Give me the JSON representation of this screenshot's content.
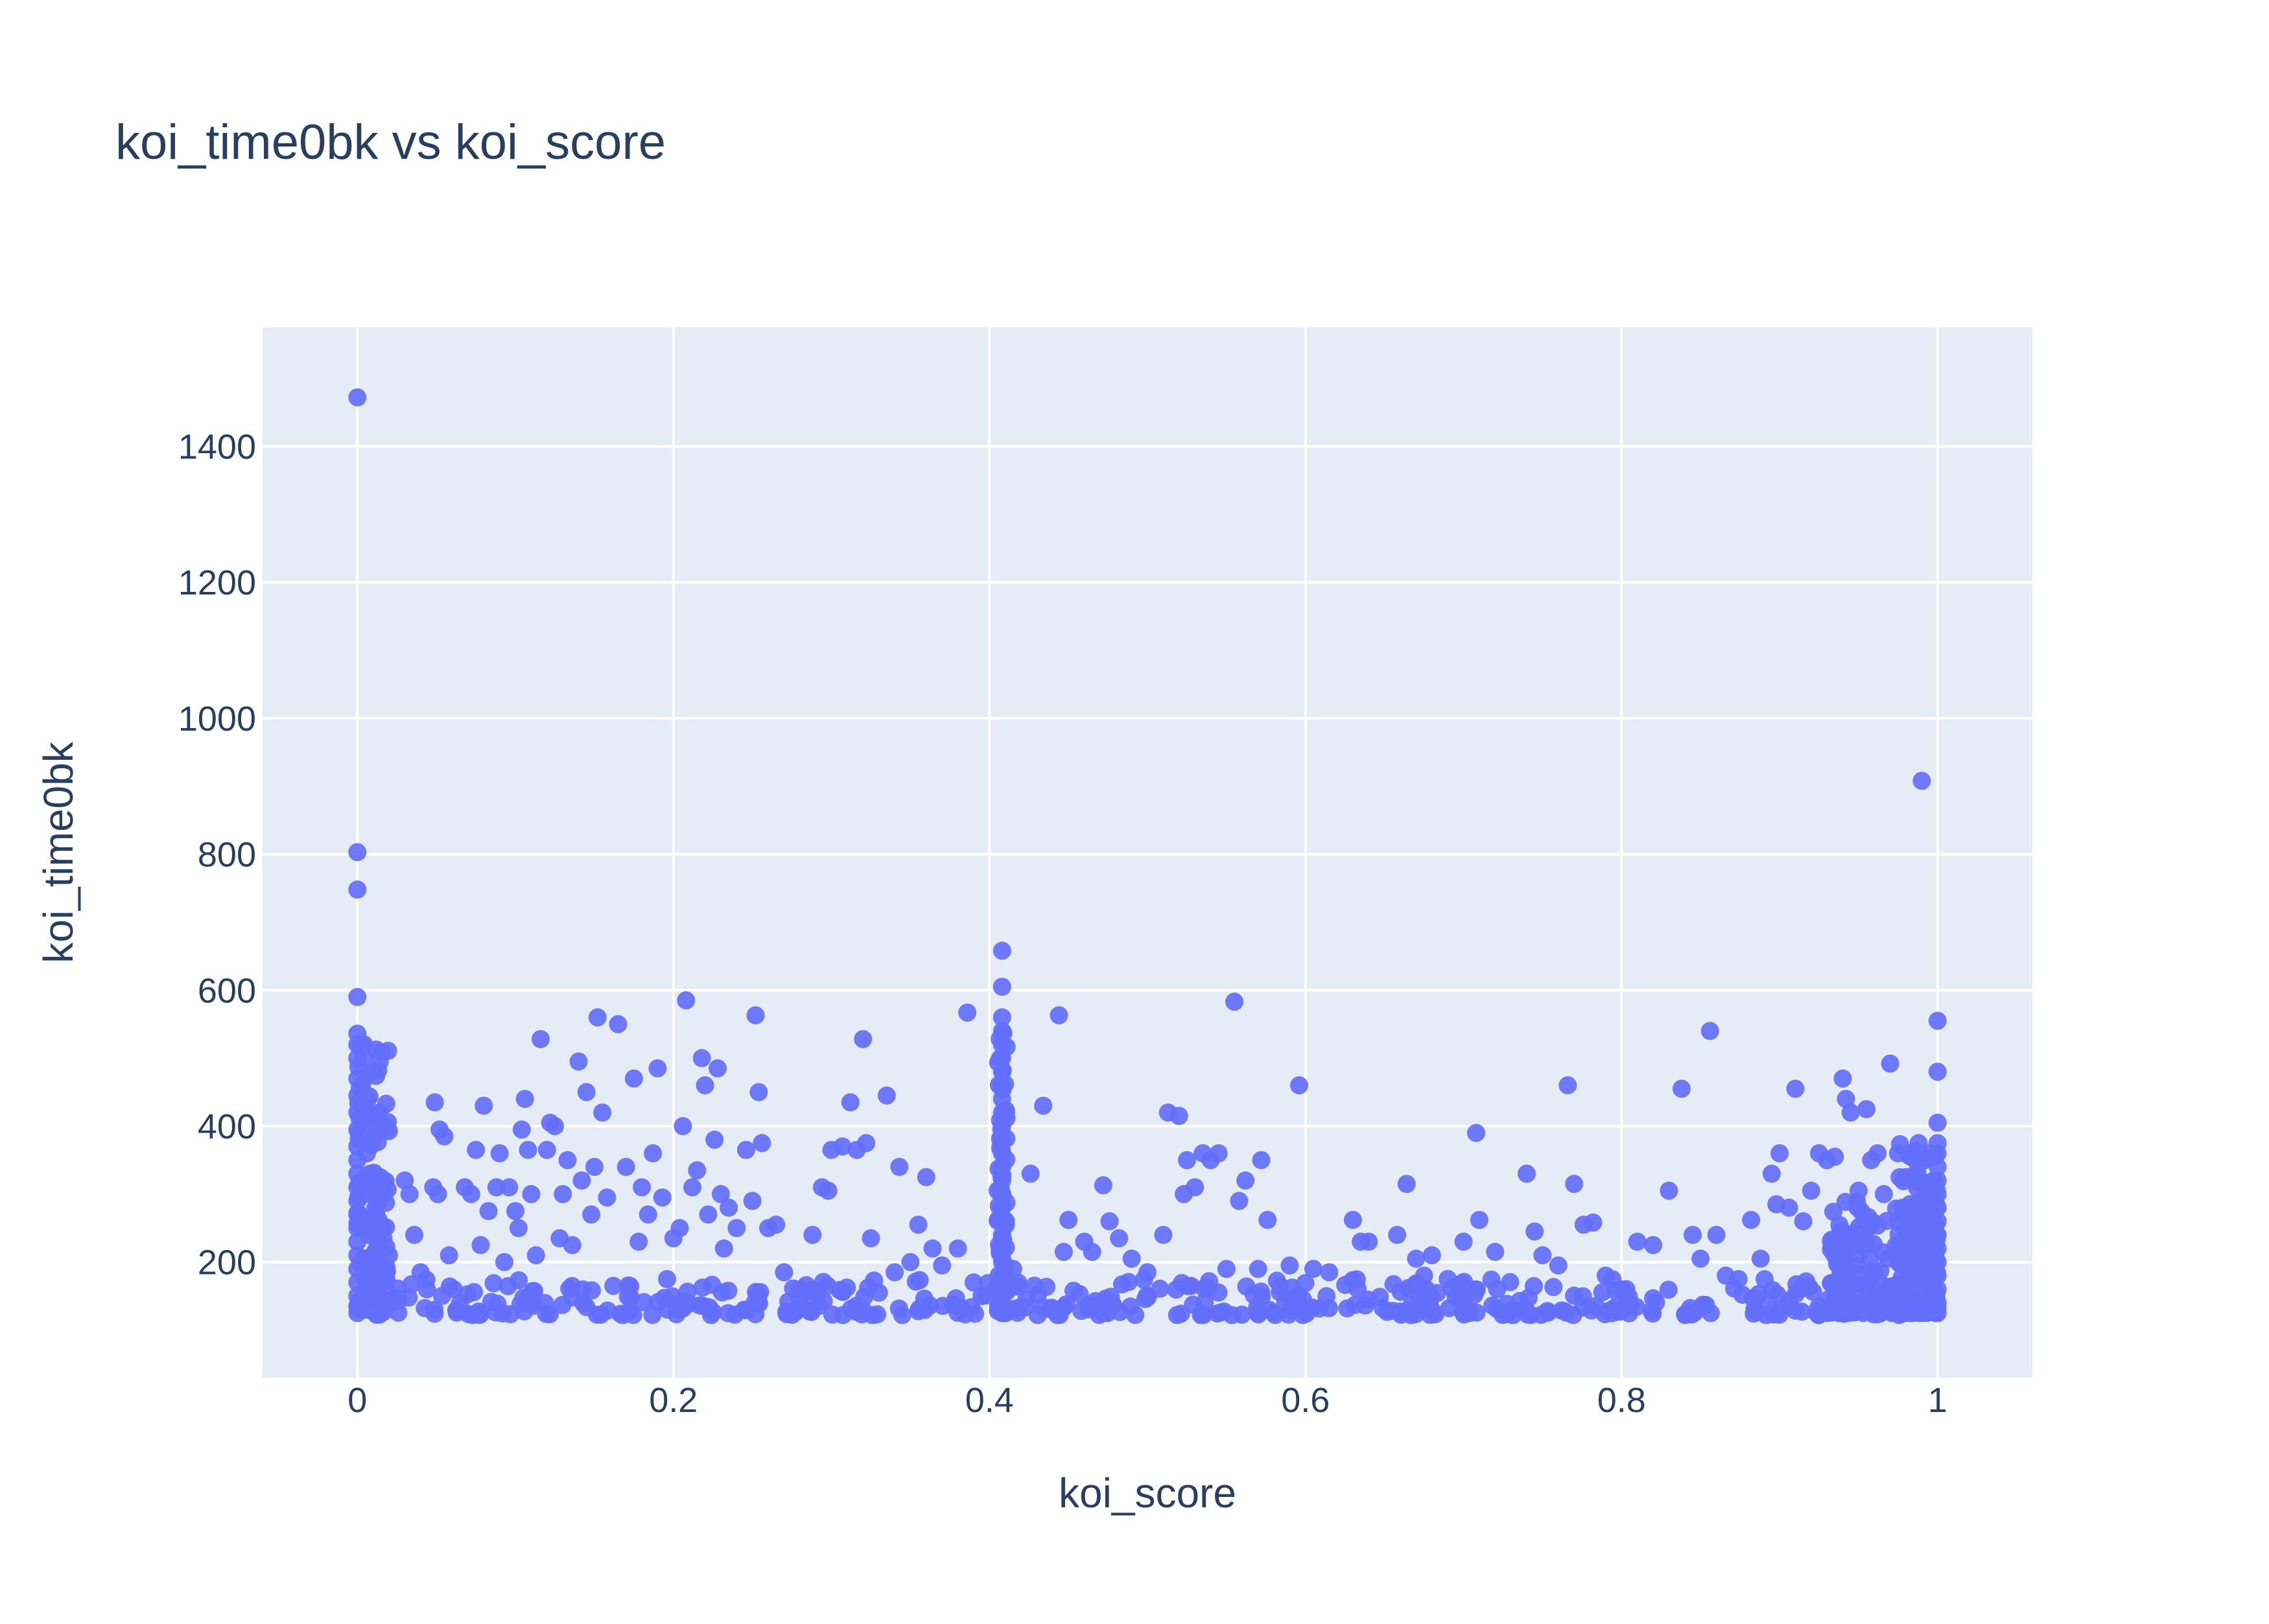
{
  "chart_data": {
    "type": "scatter",
    "title": "koi_time0bk vs koi_score",
    "xlabel": "koi_score",
    "ylabel": "koi_time0bk",
    "xlim": [
      -0.06,
      1.06
    ],
    "ylim": [
      30,
      1575
    ],
    "x_ticks": [
      0,
      0.2,
      0.4,
      0.6,
      0.8,
      1
    ],
    "x_tick_labels": [
      "0",
      "0.2",
      "0.4",
      "0.6",
      "0.8",
      "1"
    ],
    "y_ticks": [
      200,
      400,
      600,
      800,
      1000,
      1200,
      1400
    ],
    "y_tick_labels": [
      "200",
      "400",
      "600",
      "800",
      "1000",
      "1200",
      "1400"
    ],
    "grid": true,
    "marker_color": "#636efa",
    "plot_bgcolor": "#e5ecf6",
    "grid_color": "#ffffff",
    "text_color": "#2a3f5f",
    "series": [
      {
        "points": [
          [
            0.0,
            1472
          ],
          [
            0.0,
            803
          ],
          [
            0.0,
            748
          ],
          [
            0.0,
            590
          ],
          [
            0.0,
            536
          ],
          [
            0.0,
            520
          ],
          [
            0.0,
            500
          ],
          [
            0.0,
            470
          ],
          [
            0.0,
            445
          ],
          [
            0.0,
            420
          ],
          [
            0.0,
            395
          ],
          [
            0.0,
            370
          ],
          [
            0.0,
            350
          ],
          [
            0.0,
            330
          ],
          [
            0.0,
            310
          ],
          [
            0.0,
            290
          ],
          [
            0.0,
            270
          ],
          [
            0.0,
            250
          ],
          [
            0.0,
            230
          ],
          [
            0.0,
            210
          ],
          [
            0.0,
            190
          ],
          [
            0.0,
            170
          ],
          [
            0.0,
            150
          ],
          [
            0.0,
            135
          ],
          [
            0.0,
            125
          ],
          [
            0.002,
            515
          ],
          [
            0.003,
            460
          ],
          [
            0.004,
            410
          ],
          [
            0.006,
            360
          ],
          [
            0.008,
            330
          ],
          [
            0.005,
            300
          ],
          [
            0.003,
            265
          ],
          [
            0.007,
            240
          ],
          [
            0.004,
            205
          ],
          [
            0.009,
            180
          ],
          [
            0.006,
            155
          ],
          [
            0.002,
            140
          ],
          [
            0.006,
            475
          ],
          [
            0.011,
            315
          ],
          [
            0.014,
            420
          ],
          [
            0.016,
            250
          ],
          [
            0.02,
            210
          ],
          [
            0.013,
            190
          ],
          [
            0.018,
            165
          ],
          [
            0.024,
            145
          ],
          [
            0.012,
            135
          ],
          [
            0.03,
            320
          ],
          [
            0.033,
            300
          ],
          [
            0.036,
            240
          ],
          [
            0.04,
            185
          ],
          [
            0.044,
            160
          ],
          [
            0.048,
            310
          ],
          [
            0.049,
            435
          ],
          [
            0.051,
            300
          ],
          [
            0.052,
            395
          ],
          [
            0.055,
            385
          ],
          [
            0.058,
            210
          ],
          [
            0.061,
            160
          ],
          [
            0.065,
            140
          ],
          [
            0.068,
            310
          ],
          [
            0.072,
            300
          ],
          [
            0.075,
            365
          ],
          [
            0.078,
            225
          ],
          [
            0.08,
            430
          ],
          [
            0.083,
            275
          ],
          [
            0.088,
            310
          ],
          [
            0.09,
            360
          ],
          [
            0.093,
            200
          ],
          [
            0.096,
            310
          ],
          [
            0.1,
            275
          ],
          [
            0.102,
            250
          ],
          [
            0.104,
            395
          ],
          [
            0.106,
            440
          ],
          [
            0.108,
            365
          ],
          [
            0.11,
            300
          ],
          [
            0.113,
            210
          ],
          [
            0.116,
            528
          ],
          [
            0.12,
            365
          ],
          [
            0.122,
            405
          ],
          [
            0.125,
            400
          ],
          [
            0.128,
            235
          ],
          [
            0.13,
            300
          ],
          [
            0.133,
            350
          ],
          [
            0.136,
            225
          ],
          [
            0.14,
            495
          ],
          [
            0.142,
            320
          ],
          [
            0.145,
            450
          ],
          [
            0.148,
            270
          ],
          [
            0.15,
            340
          ],
          [
            0.152,
            560
          ],
          [
            0.155,
            420
          ],
          [
            0.158,
            295
          ],
          [
            0.162,
            165
          ],
          [
            0.165,
            550
          ],
          [
            0.17,
            340
          ],
          [
            0.175,
            470
          ],
          [
            0.178,
            230
          ],
          [
            0.18,
            310
          ],
          [
            0.184,
            270
          ],
          [
            0.187,
            360
          ],
          [
            0.19,
            485
          ],
          [
            0.193,
            295
          ],
          [
            0.196,
            175
          ],
          [
            0.2,
            235
          ],
          [
            0.204,
            250
          ],
          [
            0.206,
            400
          ],
          [
            0.208,
            585
          ],
          [
            0.212,
            310
          ],
          [
            0.215,
            335
          ],
          [
            0.218,
            500
          ],
          [
            0.22,
            460
          ],
          [
            0.222,
            270
          ],
          [
            0.226,
            380
          ],
          [
            0.228,
            485
          ],
          [
            0.23,
            300
          ],
          [
            0.232,
            220
          ],
          [
            0.235,
            280
          ],
          [
            0.24,
            250
          ],
          [
            0.246,
            365
          ],
          [
            0.25,
            290
          ],
          [
            0.252,
            563
          ],
          [
            0.254,
            450
          ],
          [
            0.256,
            375
          ],
          [
            0.26,
            250
          ],
          [
            0.265,
            255
          ],
          [
            0.27,
            185
          ],
          [
            0.28,
            160
          ],
          [
            0.288,
            240
          ],
          [
            0.294,
            310
          ],
          [
            0.298,
            305
          ],
          [
            0.3,
            365
          ],
          [
            0.307,
            370
          ],
          [
            0.312,
            435
          ],
          [
            0.316,
            365
          ],
          [
            0.32,
            528
          ],
          [
            0.322,
            375
          ],
          [
            0.325,
            235
          ],
          [
            0.33,
            155
          ],
          [
            0.335,
            445
          ],
          [
            0.34,
            185
          ],
          [
            0.343,
            340
          ],
          [
            0.35,
            200
          ],
          [
            0.355,
            255
          ],
          [
            0.36,
            325
          ],
          [
            0.364,
            220
          ],
          [
            0.37,
            195
          ],
          [
            0.38,
            220
          ],
          [
            0.386,
            567
          ],
          [
            0.39,
            170
          ],
          [
            0.395,
            150
          ],
          [
            0.408,
            658
          ],
          [
            0.408,
            605
          ],
          [
            0.408,
            560
          ],
          [
            0.408,
            540
          ],
          [
            0.408,
            520
          ],
          [
            0.408,
            500
          ],
          [
            0.408,
            480
          ],
          [
            0.408,
            460
          ],
          [
            0.408,
            440
          ],
          [
            0.408,
            420
          ],
          [
            0.408,
            400
          ],
          [
            0.408,
            380
          ],
          [
            0.408,
            360
          ],
          [
            0.408,
            340
          ],
          [
            0.408,
            320
          ],
          [
            0.408,
            300
          ],
          [
            0.408,
            280
          ],
          [
            0.408,
            260
          ],
          [
            0.408,
            240
          ],
          [
            0.408,
            220
          ],
          [
            0.408,
            200
          ],
          [
            0.408,
            180
          ],
          [
            0.408,
            160
          ],
          [
            0.408,
            140
          ],
          [
            0.408,
            125
          ],
          [
            0.415,
            190
          ],
          [
            0.426,
            330
          ],
          [
            0.434,
            430
          ],
          [
            0.444,
            563
          ],
          [
            0.447,
            215
          ],
          [
            0.45,
            262
          ],
          [
            0.46,
            230
          ],
          [
            0.465,
            215
          ],
          [
            0.472,
            313
          ],
          [
            0.476,
            260
          ],
          [
            0.482,
            235
          ],
          [
            0.49,
            205
          ],
          [
            0.5,
            185
          ],
          [
            0.51,
            240
          ],
          [
            0.513,
            420
          ],
          [
            0.52,
            415
          ],
          [
            0.523,
            300
          ],
          [
            0.525,
            350
          ],
          [
            0.53,
            310
          ],
          [
            0.535,
            360
          ],
          [
            0.54,
            350
          ],
          [
            0.545,
            360
          ],
          [
            0.55,
            190
          ],
          [
            0.555,
            583
          ],
          [
            0.558,
            290
          ],
          [
            0.562,
            320
          ],
          [
            0.57,
            190
          ],
          [
            0.572,
            350
          ],
          [
            0.576,
            262
          ],
          [
            0.59,
            195
          ],
          [
            0.596,
            460
          ],
          [
            0.605,
            190
          ],
          [
            0.615,
            185
          ],
          [
            0.63,
            262
          ],
          [
            0.635,
            230
          ],
          [
            0.64,
            230
          ],
          [
            0.658,
            240
          ],
          [
            0.664,
            315
          ],
          [
            0.67,
            205
          ],
          [
            0.675,
            180
          ],
          [
            0.68,
            210
          ],
          [
            0.69,
            175
          ],
          [
            0.7,
            230
          ],
          [
            0.708,
            390
          ],
          [
            0.71,
            262
          ],
          [
            0.72,
            215
          ],
          [
            0.74,
            330
          ],
          [
            0.745,
            245
          ],
          [
            0.75,
            210
          ],
          [
            0.76,
            195
          ],
          [
            0.766,
            460
          ],
          [
            0.77,
            315
          ],
          [
            0.776,
            255
          ],
          [
            0.782,
            258
          ],
          [
            0.79,
            180
          ],
          [
            0.8,
            160
          ],
          [
            0.81,
            230
          ],
          [
            0.82,
            225
          ],
          [
            0.83,
            305
          ],
          [
            0.838,
            455
          ],
          [
            0.845,
            240
          ],
          [
            0.85,
            205
          ],
          [
            0.856,
            540
          ],
          [
            0.86,
            240
          ],
          [
            0.866,
            180
          ],
          [
            0.874,
            175
          ],
          [
            0.882,
            262
          ],
          [
            0.888,
            205
          ],
          [
            0.895,
            330
          ],
          [
            0.898,
            285
          ],
          [
            0.9,
            360
          ],
          [
            0.906,
            280
          ],
          [
            0.91,
            455
          ],
          [
            0.915,
            260
          ],
          [
            0.92,
            305
          ],
          [
            0.925,
            360
          ],
          [
            0.93,
            350
          ],
          [
            0.935,
            355
          ],
          [
            0.94,
            470
          ],
          [
            0.942,
            440
          ],
          [
            0.945,
            420
          ],
          [
            0.95,
            305
          ],
          [
            0.955,
            425
          ],
          [
            0.958,
            350
          ],
          [
            0.962,
            360
          ],
          [
            0.966,
            300
          ],
          [
            0.97,
            492
          ],
          [
            0.975,
            360
          ],
          [
            0.978,
            280
          ],
          [
            0.98,
            325
          ],
          [
            0.983,
            260
          ],
          [
            0.986,
            360
          ],
          [
            0.988,
            375
          ],
          [
            0.99,
            908
          ],
          [
            1.0,
            555
          ],
          [
            1.0,
            480
          ],
          [
            1.0,
            405
          ],
          [
            1.0,
            375
          ],
          [
            1.0,
            360
          ],
          [
            1.0,
            340
          ],
          [
            1.0,
            320
          ],
          [
            1.0,
            300
          ],
          [
            1.0,
            280
          ],
          [
            1.0,
            260
          ],
          [
            1.0,
            240
          ],
          [
            1.0,
            220
          ],
          [
            1.0,
            200
          ],
          [
            1.0,
            180
          ],
          [
            1.0,
            160
          ],
          [
            1.0,
            140
          ],
          [
            1.0,
            125
          ],
          [
            0.995,
            360
          ],
          [
            0.996,
            300
          ],
          [
            0.993,
            250
          ],
          [
            0.992,
            200
          ],
          [
            0.997,
            170
          ],
          [
            0.994,
            140
          ]
        ],
        "dense_bands": [
          {
            "x_from": 0.0,
            "x_to": 1.0,
            "y_from": 122,
            "y_to": 175,
            "count": 420
          },
          {
            "x_from": 0.0,
            "x_to": 0.02,
            "y_from": 130,
            "y_to": 540,
            "count": 110
          },
          {
            "x_from": 0.405,
            "x_to": 0.411,
            "y_from": 125,
            "y_to": 560,
            "count": 70
          },
          {
            "x_from": 0.93,
            "x_to": 1.0,
            "y_from": 125,
            "y_to": 290,
            "count": 220
          },
          {
            "x_from": 0.975,
            "x_to": 1.0,
            "y_from": 125,
            "y_to": 380,
            "count": 90
          }
        ]
      }
    ]
  }
}
